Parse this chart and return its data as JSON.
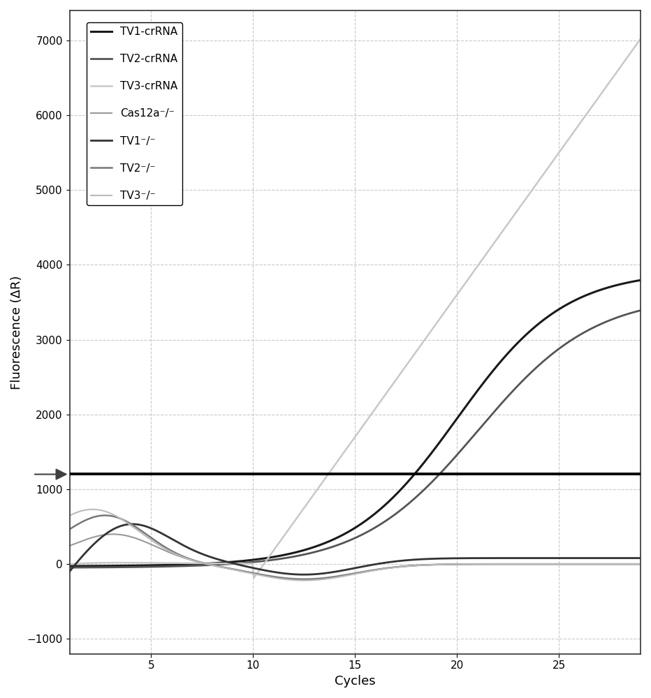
{
  "xlabel": "Cycles",
  "ylabel": "Fluorescence (ΔR)",
  "xlim": [
    1,
    29
  ],
  "ylim": [
    -1200,
    7400
  ],
  "yticks": [
    -1000,
    0,
    1000,
    2000,
    3000,
    4000,
    5000,
    6000,
    7000
  ],
  "xticks": [
    5,
    10,
    15,
    20,
    25
  ],
  "threshold": 1200,
  "legend_labels": [
    "TV1-crRNA",
    "",
    "TV2-crRNA",
    "",
    "TV3-crRNA",
    "",
    "Cas12a⁻/⁻",
    "",
    "TV1⁻/⁻",
    "",
    "TV2⁻/⁻",
    "",
    "TV3⁻/⁻"
  ],
  "grid_color": "#bbbbbb",
  "legend_fontsize": 11,
  "axis_fontsize": 13,
  "tick_fontsize": 11
}
